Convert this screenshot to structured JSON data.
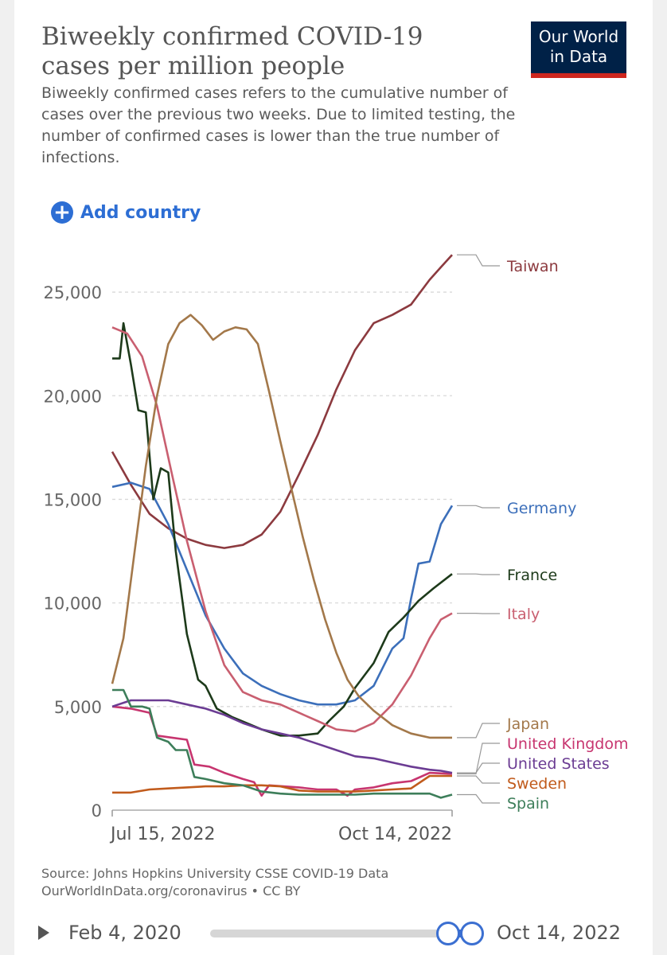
{
  "header": {
    "title": "Biweekly confirmed COVID-19 cases per million people",
    "subtitle": "Biweekly confirmed cases refers to the cumulative number of cases over the previous two weeks. Due to limited testing, the number of confirmed cases is lower than the true number of infections.",
    "logo_line1": "Our World",
    "logo_line2": "in Data"
  },
  "controls": {
    "add_country_label": "Add country",
    "add_icon": "plus-circle-icon"
  },
  "chart_data": {
    "type": "line",
    "title": "Biweekly confirmed COVID-19 cases per million people",
    "xlabel": "",
    "ylabel": "",
    "x_start_label": "Jul 15, 2022",
    "x_end_label": "Oct 14, 2022",
    "x_days": 91,
    "ylim": [
      0,
      27000
    ],
    "y_ticks": [
      0,
      5000,
      10000,
      15000,
      20000,
      25000
    ],
    "y_tick_labels": [
      "0",
      "5,000",
      "10,000",
      "15,000",
      "20,000",
      "25,000"
    ],
    "grid": true,
    "legend": "right",
    "series": [
      {
        "name": "Taiwan",
        "color": "#8c3a3f",
        "points": [
          [
            0,
            17300
          ],
          [
            5,
            15700
          ],
          [
            10,
            14300
          ],
          [
            15,
            13600
          ],
          [
            20,
            13100
          ],
          [
            25,
            12800
          ],
          [
            30,
            12650
          ],
          [
            35,
            12800
          ],
          [
            40,
            13300
          ],
          [
            45,
            14400
          ],
          [
            50,
            16200
          ],
          [
            55,
            18100
          ],
          [
            60,
            20300
          ],
          [
            65,
            22200
          ],
          [
            70,
            23500
          ],
          [
            75,
            23900
          ],
          [
            80,
            24400
          ],
          [
            85,
            25600
          ],
          [
            88,
            26200
          ],
          [
            91,
            26800
          ]
        ]
      },
      {
        "name": "Germany",
        "color": "#3c6fba",
        "points": [
          [
            0,
            15600
          ],
          [
            5,
            15800
          ],
          [
            10,
            15500
          ],
          [
            15,
            13800
          ],
          [
            20,
            11600
          ],
          [
            25,
            9400
          ],
          [
            30,
            7800
          ],
          [
            35,
            6600
          ],
          [
            40,
            6000
          ],
          [
            45,
            5600
          ],
          [
            50,
            5300
          ],
          [
            55,
            5100
          ],
          [
            60,
            5100
          ],
          [
            65,
            5300
          ],
          [
            70,
            6000
          ],
          [
            75,
            7800
          ],
          [
            78,
            8300
          ],
          [
            80,
            10200
          ],
          [
            82,
            11900
          ],
          [
            85,
            12000
          ],
          [
            88,
            13800
          ],
          [
            91,
            14700
          ]
        ]
      },
      {
        "name": "France",
        "color": "#1d3a1a",
        "points": [
          [
            0,
            21800
          ],
          [
            2,
            21800
          ],
          [
            3,
            23500
          ],
          [
            5,
            21500
          ],
          [
            7,
            19300
          ],
          [
            9,
            19200
          ],
          [
            11,
            15000
          ],
          [
            13,
            16500
          ],
          [
            15,
            16300
          ],
          [
            17,
            12500
          ],
          [
            20,
            8500
          ],
          [
            23,
            6300
          ],
          [
            25,
            6000
          ],
          [
            28,
            4900
          ],
          [
            32,
            4500
          ],
          [
            36,
            4200
          ],
          [
            40,
            3900
          ],
          [
            45,
            3600
          ],
          [
            50,
            3600
          ],
          [
            55,
            3700
          ],
          [
            58,
            4300
          ],
          [
            62,
            5000
          ],
          [
            65,
            5900
          ],
          [
            70,
            7100
          ],
          [
            74,
            8600
          ],
          [
            78,
            9300
          ],
          [
            82,
            10100
          ],
          [
            86,
            10700
          ],
          [
            91,
            11400
          ]
        ]
      },
      {
        "name": "Italy",
        "color": "#c95f70",
        "points": [
          [
            0,
            23300
          ],
          [
            4,
            23000
          ],
          [
            8,
            21900
          ],
          [
            12,
            19500
          ],
          [
            16,
            16200
          ],
          [
            20,
            13000
          ],
          [
            25,
            9600
          ],
          [
            30,
            7000
          ],
          [
            35,
            5700
          ],
          [
            40,
            5300
          ],
          [
            45,
            5100
          ],
          [
            50,
            4700
          ],
          [
            55,
            4300
          ],
          [
            60,
            3900
          ],
          [
            65,
            3800
          ],
          [
            70,
            4200
          ],
          [
            75,
            5100
          ],
          [
            80,
            6500
          ],
          [
            85,
            8300
          ],
          [
            88,
            9200
          ],
          [
            91,
            9500
          ]
        ]
      },
      {
        "name": "Japan",
        "color": "#a3784a",
        "points": [
          [
            0,
            6100
          ],
          [
            3,
            8300
          ],
          [
            6,
            12500
          ],
          [
            9,
            16600
          ],
          [
            12,
            20000
          ],
          [
            15,
            22500
          ],
          [
            18,
            23500
          ],
          [
            21,
            23900
          ],
          [
            24,
            23400
          ],
          [
            27,
            22700
          ],
          [
            30,
            23100
          ],
          [
            33,
            23300
          ],
          [
            36,
            23200
          ],
          [
            39,
            22500
          ],
          [
            42,
            20200
          ],
          [
            45,
            17800
          ],
          [
            48,
            15500
          ],
          [
            51,
            13200
          ],
          [
            54,
            11100
          ],
          [
            57,
            9200
          ],
          [
            60,
            7600
          ],
          [
            63,
            6300
          ],
          [
            66,
            5500
          ],
          [
            70,
            4800
          ],
          [
            75,
            4100
          ],
          [
            80,
            3700
          ],
          [
            85,
            3500
          ],
          [
            88,
            3500
          ],
          [
            91,
            3500
          ]
        ]
      },
      {
        "name": "United Kingdom",
        "color": "#c7356f",
        "points": [
          [
            0,
            5000
          ],
          [
            5,
            4900
          ],
          [
            10,
            4700
          ],
          [
            12,
            3600
          ],
          [
            16,
            3500
          ],
          [
            20,
            3400
          ],
          [
            22,
            2200
          ],
          [
            26,
            2100
          ],
          [
            30,
            1800
          ],
          [
            35,
            1500
          ],
          [
            38,
            1350
          ],
          [
            40,
            700
          ],
          [
            42,
            1200
          ],
          [
            50,
            1100
          ],
          [
            55,
            1000
          ],
          [
            60,
            1000
          ],
          [
            63,
            700
          ],
          [
            65,
            1000
          ],
          [
            70,
            1100
          ],
          [
            75,
            1300
          ],
          [
            80,
            1400
          ],
          [
            85,
            1800
          ],
          [
            91,
            1750
          ]
        ]
      },
      {
        "name": "United States",
        "color": "#6b3c93",
        "points": [
          [
            0,
            5000
          ],
          [
            5,
            5300
          ],
          [
            10,
            5300
          ],
          [
            15,
            5300
          ],
          [
            20,
            5100
          ],
          [
            25,
            4900
          ],
          [
            30,
            4600
          ],
          [
            35,
            4200
          ],
          [
            40,
            3900
          ],
          [
            45,
            3700
          ],
          [
            50,
            3500
          ],
          [
            55,
            3200
          ],
          [
            60,
            2900
          ],
          [
            65,
            2600
          ],
          [
            70,
            2500
          ],
          [
            75,
            2300
          ],
          [
            80,
            2100
          ],
          [
            85,
            1950
          ],
          [
            88,
            1900
          ],
          [
            91,
            1800
          ]
        ]
      },
      {
        "name": "Sweden",
        "color": "#c15b1c",
        "points": [
          [
            0,
            850
          ],
          [
            5,
            850
          ],
          [
            10,
            1000
          ],
          [
            15,
            1050
          ],
          [
            20,
            1100
          ],
          [
            25,
            1150
          ],
          [
            30,
            1150
          ],
          [
            35,
            1200
          ],
          [
            40,
            1200
          ],
          [
            45,
            1150
          ],
          [
            50,
            950
          ],
          [
            55,
            900
          ],
          [
            60,
            900
          ],
          [
            65,
            900
          ],
          [
            70,
            950
          ],
          [
            75,
            1000
          ],
          [
            80,
            1050
          ],
          [
            85,
            1650
          ],
          [
            88,
            1650
          ],
          [
            91,
            1650
          ]
        ]
      },
      {
        "name": "Spain",
        "color": "#3d7e5a",
        "points": [
          [
            0,
            5800
          ],
          [
            3,
            5800
          ],
          [
            5,
            5000
          ],
          [
            8,
            5000
          ],
          [
            10,
            4900
          ],
          [
            12,
            3500
          ],
          [
            15,
            3300
          ],
          [
            17,
            2900
          ],
          [
            20,
            2900
          ],
          [
            22,
            1600
          ],
          [
            25,
            1500
          ],
          [
            30,
            1300
          ],
          [
            35,
            1200
          ],
          [
            40,
            900
          ],
          [
            45,
            800
          ],
          [
            50,
            750
          ],
          [
            55,
            750
          ],
          [
            60,
            750
          ],
          [
            65,
            750
          ],
          [
            70,
            800
          ],
          [
            75,
            800
          ],
          [
            80,
            800
          ],
          [
            85,
            800
          ],
          [
            88,
            600
          ],
          [
            91,
            750
          ]
        ]
      }
    ]
  },
  "footer": {
    "source_line1": "Source: Johns Hopkins University CSSE COVID-19 Data",
    "source_line2": "OurWorldInData.org/coronavirus • CC BY"
  },
  "timeline": {
    "start_label": "Feb 4, 2020",
    "end_label": "Oct 14, 2022",
    "play_icon": "play-icon",
    "range_start": 0.91,
    "range_end": 1.0
  }
}
